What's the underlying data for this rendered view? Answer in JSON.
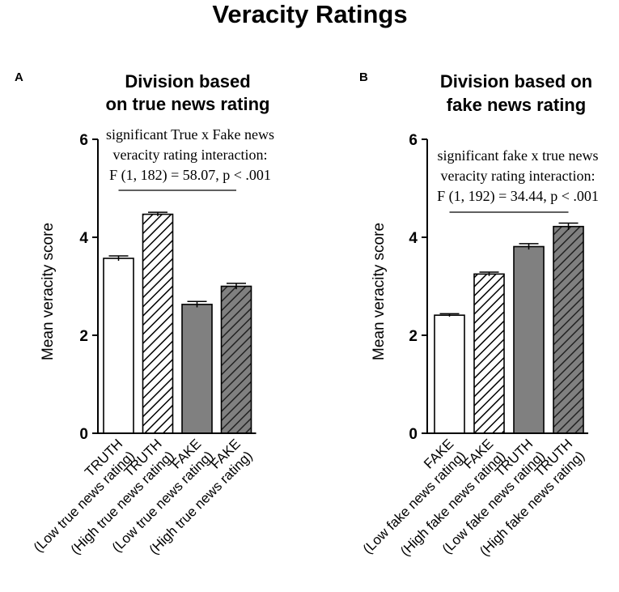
{
  "figure_title": "Veracity Ratings",
  "chart_data": [
    {
      "type": "bar",
      "panel_label": "A",
      "title": [
        "Division based",
        "on true news rating"
      ],
      "xlabel": "",
      "ylabel": "Mean veracity score",
      "ylim": [
        0,
        6
      ],
      "yticks": [
        0,
        2,
        4,
        6
      ],
      "categories": [
        [
          "TRUTH",
          "(Low true news rating)"
        ],
        [
          "TRUTH",
          "(High true news rating)"
        ],
        [
          "FAKE",
          "(Low true news rating)"
        ],
        [
          "FAKE",
          "(High true news rating)"
        ]
      ],
      "values": [
        3.57,
        4.47,
        2.63,
        3.0
      ],
      "errors": [
        0.05,
        0.04,
        0.06,
        0.06
      ],
      "bar_styles": [
        "white",
        "hatched-white",
        "gray",
        "hatched-gray"
      ],
      "annotation": {
        "lines": [
          "significant True x Fake news",
          "veracity rating interaction:",
          "F (1, 182) = 58.07, p < .001"
        ],
        "span_from_bar": 0,
        "span_to_bar": 3
      }
    },
    {
      "type": "bar",
      "panel_label": "B",
      "title": [
        "Division based on",
        "fake news rating"
      ],
      "xlabel": "",
      "ylabel": "Mean veracity score",
      "ylim": [
        0,
        6
      ],
      "yticks": [
        0,
        2,
        4,
        6
      ],
      "categories": [
        [
          "FAKE",
          "(Low fake news rating)"
        ],
        [
          "FAKE",
          "(High fake news rating)"
        ],
        [
          "TRUTH",
          "(Low fake news rating)"
        ],
        [
          "TRUTH",
          "(High fake news rating)"
        ]
      ],
      "values": [
        2.41,
        3.25,
        3.81,
        4.22
      ],
      "errors": [
        0.03,
        0.04,
        0.06,
        0.07
      ],
      "bar_styles": [
        "white",
        "hatched-white",
        "gray",
        "hatched-gray"
      ],
      "annotation": {
        "lines": [
          "significant fake x true news",
          "veracity rating interaction:",
          "F (1, 192) = 34.44, p < .001"
        ],
        "span_from_bar": 0,
        "span_to_bar": 3
      }
    }
  ],
  "colors": {
    "axis": "#000000",
    "white_bar": "#ffffff",
    "gray_bar": "#808080",
    "hatch_on_white": "#000000",
    "hatch_on_gray": "#222222"
  }
}
